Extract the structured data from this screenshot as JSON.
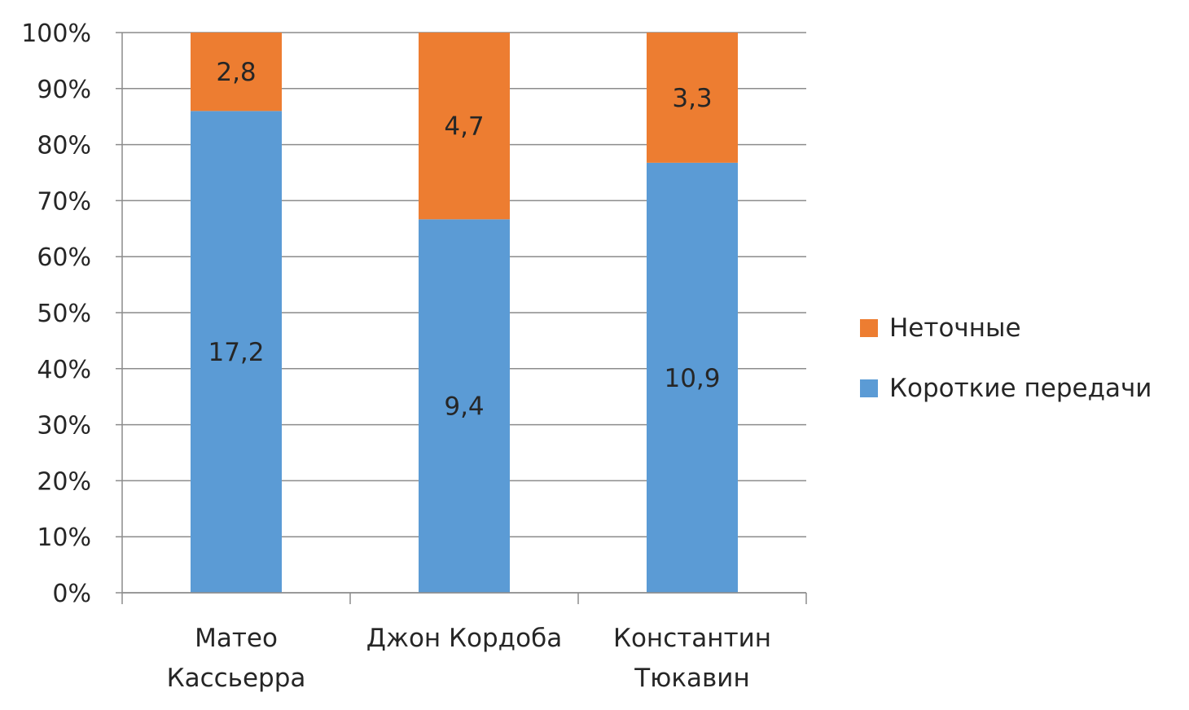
{
  "chart_data": {
    "type": "bar",
    "stacked": "percent",
    "categories": [
      "Матео Кассьерра",
      "Джон Кордоба",
      "Константин Тюкавин"
    ],
    "category_lines": [
      [
        "Матео",
        "Кассьерра"
      ],
      [
        "Джон Кордоба"
      ],
      [
        "Константин",
        "Тюкавин"
      ]
    ],
    "series": [
      {
        "name": "Короткие передачи",
        "values": [
          17.2,
          9.4,
          10.9
        ],
        "labels": [
          "17,2",
          "9,4",
          "10,9"
        ],
        "color": "#5B9BD5"
      },
      {
        "name": "Неточные",
        "values": [
          2.8,
          4.7,
          3.3
        ],
        "labels": [
          "2,8",
          "4,7",
          "3,3"
        ],
        "color": "#ED7D31"
      }
    ],
    "ylim": [
      0,
      100
    ],
    "yticks": [
      "0%",
      "10%",
      "20%",
      "30%",
      "40%",
      "50%",
      "60%",
      "70%",
      "80%",
      "90%",
      "100%"
    ],
    "grid": true,
    "legend_position": "right",
    "legend_order": [
      "Неточные",
      "Короткие передачи"
    ]
  }
}
